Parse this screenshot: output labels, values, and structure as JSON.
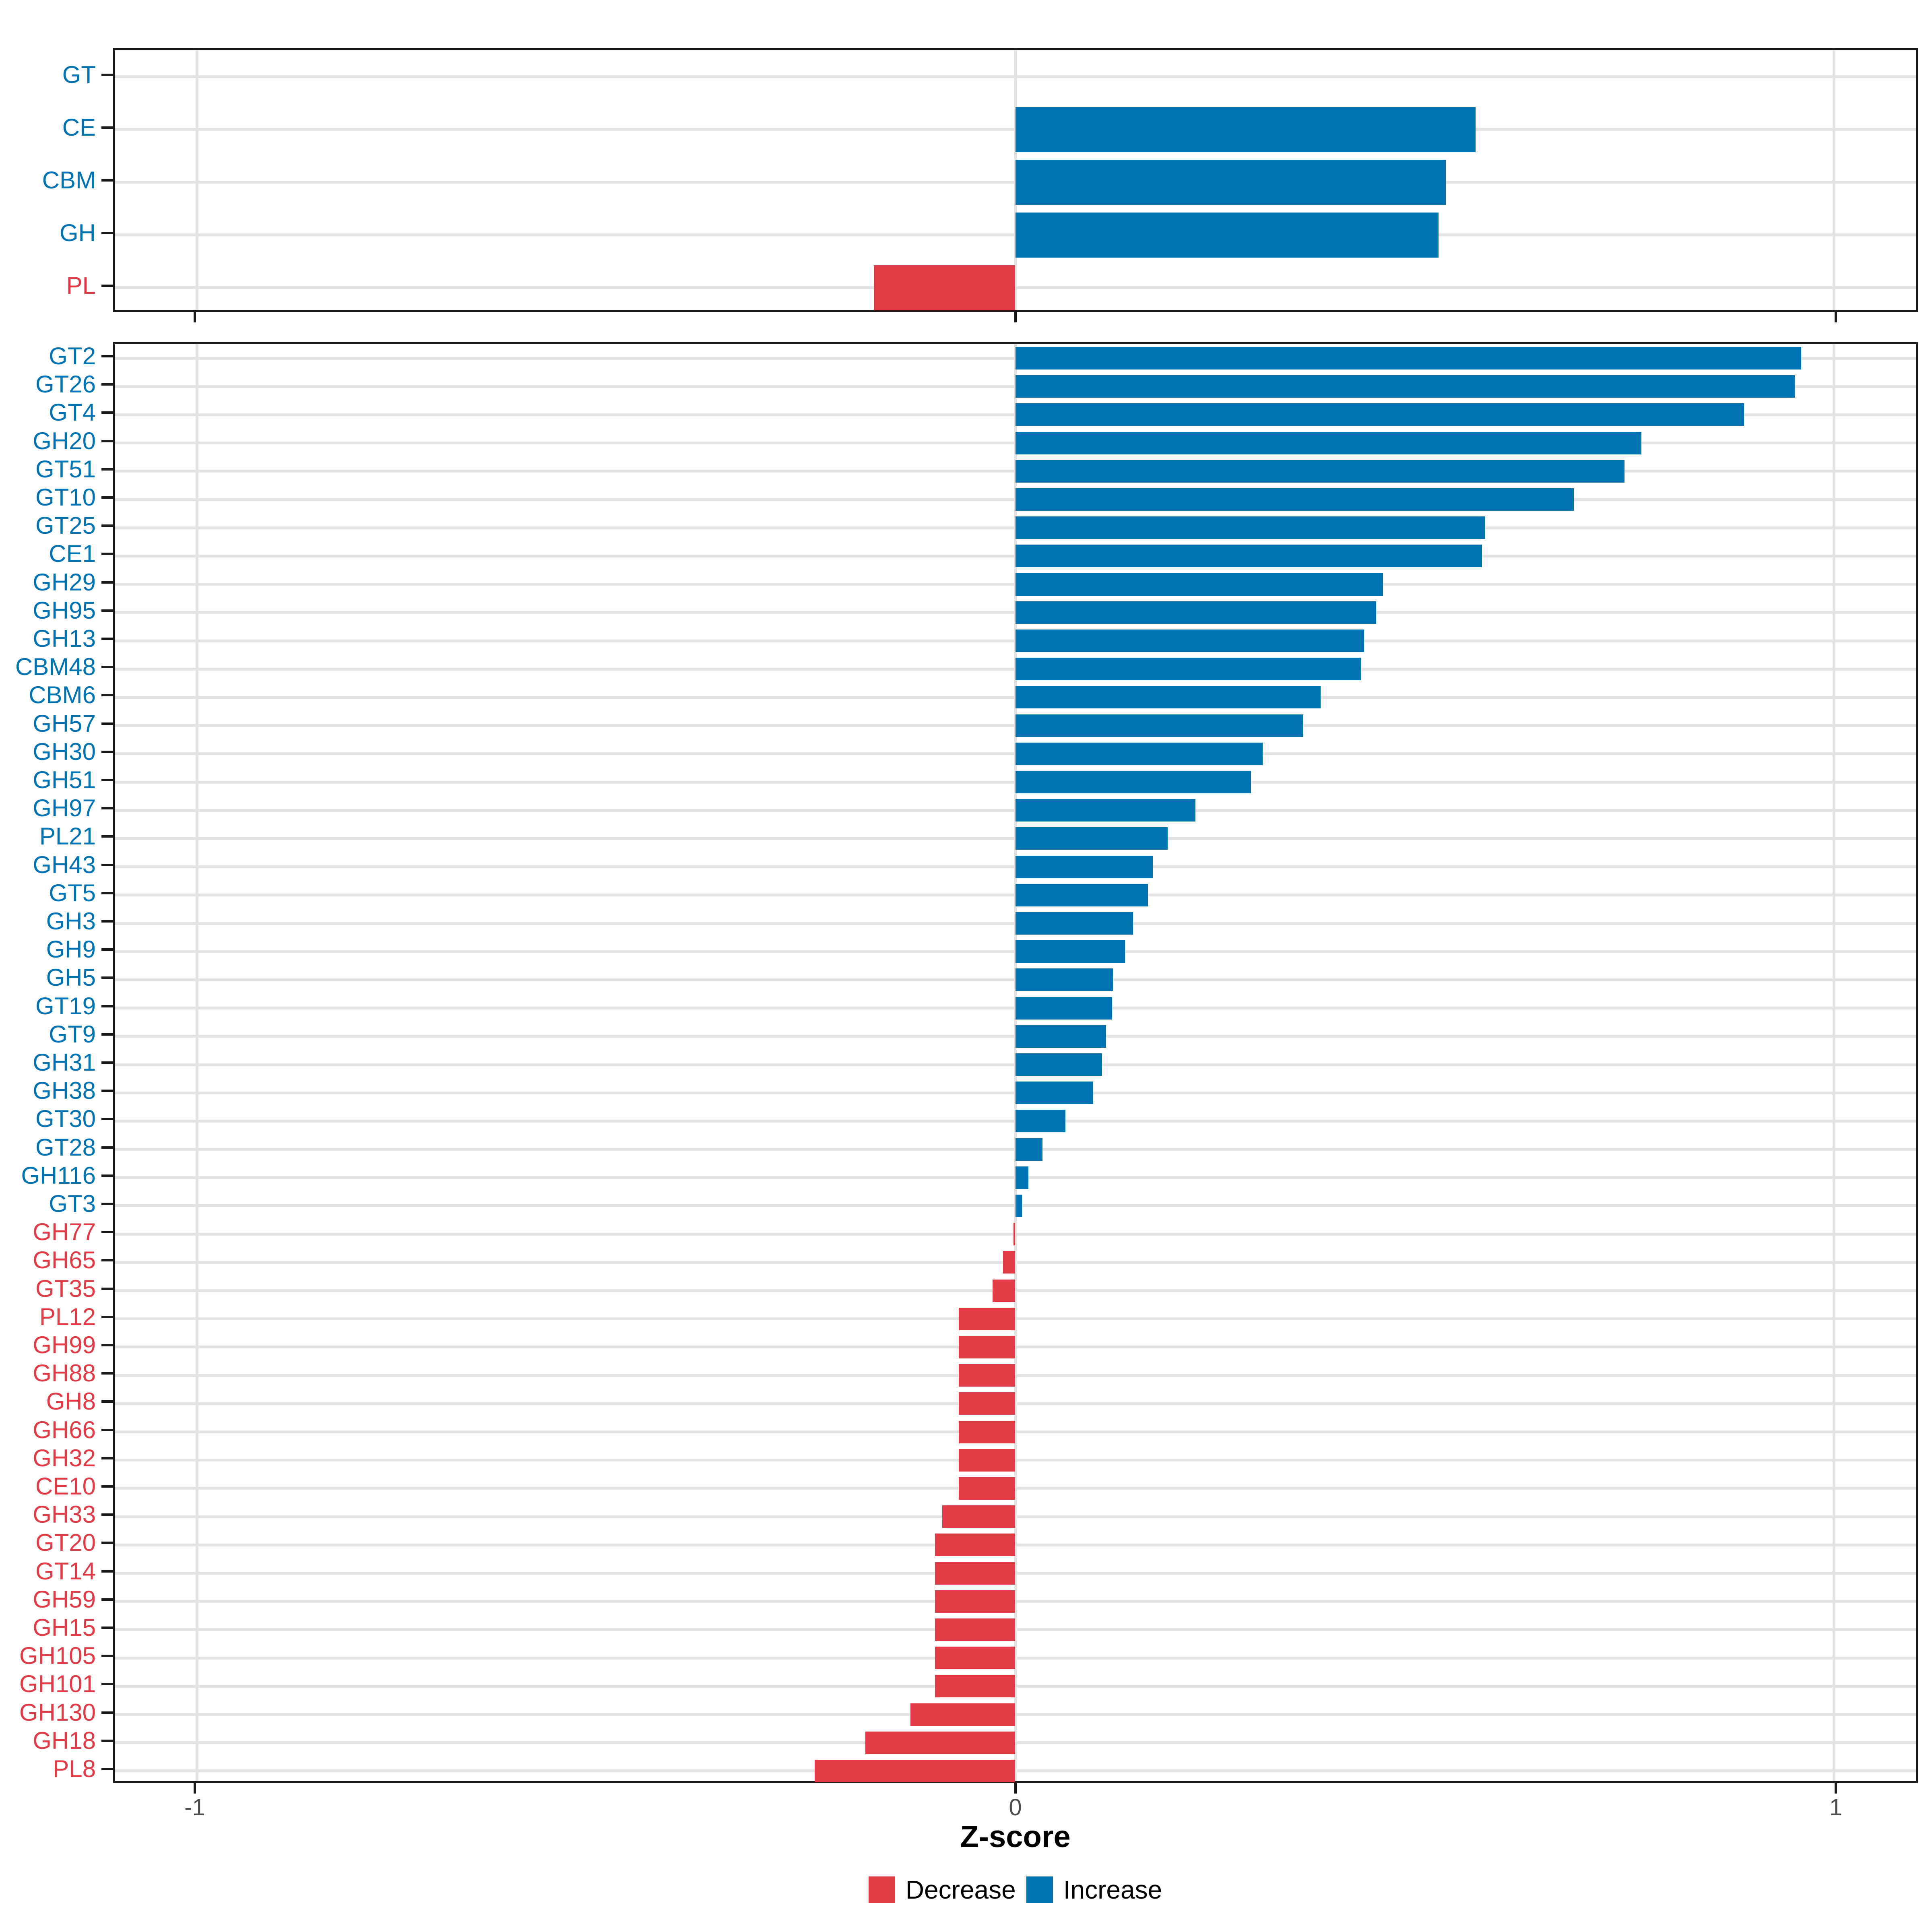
{
  "chart_data": [
    {
      "type": "bar",
      "panel": "top",
      "orientation": "horizontal",
      "title": "",
      "xlabel": "",
      "ylabel": "",
      "xlim": [
        -1.1,
        1.1
      ],
      "grid": true,
      "categories": [
        "GT",
        "CE",
        "CBM",
        "GH",
        "PL"
      ],
      "values": [
        0.0,
        0.562,
        0.526,
        0.517,
        -0.173
      ]
    },
    {
      "type": "bar",
      "panel": "bottom",
      "orientation": "horizontal",
      "title": "",
      "xlabel": "Z-score",
      "ylabel": "",
      "xlim": [
        -1.1,
        1.1
      ],
      "grid": true,
      "x_ticks": [
        -1,
        0,
        1
      ],
      "x_tick_labels": [
        "-1",
        "0",
        "1"
      ],
      "categories": [
        "GT2",
        "GT26",
        "GT4",
        "GH20",
        "GT51",
        "GT10",
        "GT25",
        "CE1",
        "GH29",
        "GH95",
        "GH13",
        "CBM48",
        "CBM6",
        "GH57",
        "GH30",
        "GH51",
        "GH97",
        "PL21",
        "GH43",
        "GT5",
        "GH3",
        "GH9",
        "GH5",
        "GT19",
        "GT9",
        "GH31",
        "GH38",
        "GT30",
        "GT28",
        "GH116",
        "GT3",
        "GH77",
        "GH65",
        "GT35",
        "PL12",
        "GH99",
        "GH88",
        "GH8",
        "GH66",
        "GH32",
        "CE10",
        "GH33",
        "GT20",
        "GT14",
        "GH59",
        "GH15",
        "GH105",
        "GH101",
        "GH130",
        "GH18",
        "PL8"
      ],
      "values": [
        0.96,
        0.952,
        0.89,
        0.765,
        0.744,
        0.682,
        0.574,
        0.57,
        0.449,
        0.441,
        0.426,
        0.422,
        0.373,
        0.352,
        0.302,
        0.288,
        0.22,
        0.186,
        0.168,
        0.162,
        0.144,
        0.134,
        0.119,
        0.118,
        0.111,
        0.106,
        0.095,
        0.061,
        0.033,
        0.016,
        0.008,
        -0.002,
        -0.015,
        -0.028,
        -0.069,
        -0.069,
        -0.069,
        -0.069,
        -0.069,
        -0.069,
        -0.069,
        -0.089,
        -0.098,
        -0.098,
        -0.098,
        -0.098,
        -0.098,
        -0.098,
        -0.128,
        -0.183,
        -0.245
      ]
    }
  ],
  "legend": {
    "position": "bottom",
    "items": [
      {
        "label": "Decrease",
        "color": "#E13B45"
      },
      {
        "label": "Increase",
        "color": "#0073B2"
      }
    ]
  },
  "colors": {
    "increase": "#0073B2",
    "decrease": "#E13B45",
    "grid": "#E3E3E3",
    "axis_text": "#4D4D4D",
    "panel_border": "#1B1B1B",
    "background": "#FFFFFF"
  }
}
